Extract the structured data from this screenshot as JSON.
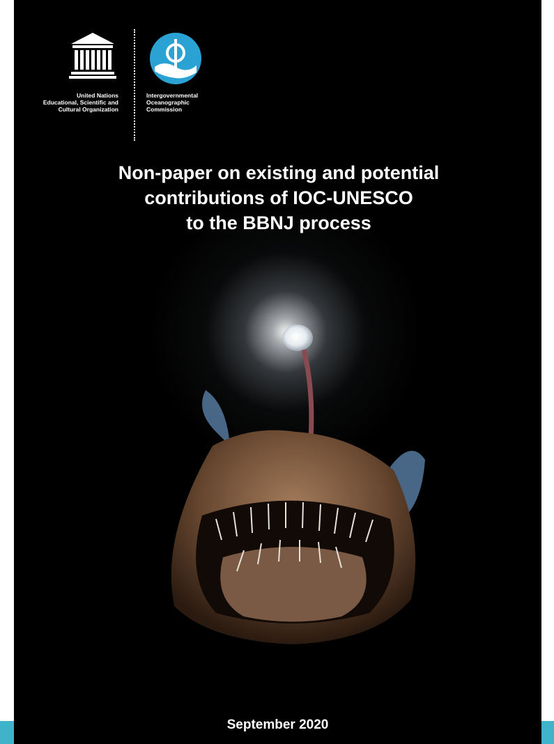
{
  "cover": {
    "background": "#000000",
    "accent_color": "#3fb3c9",
    "unesco": {
      "logo_icon": "unesco-temple-icon",
      "caption": "United Nations\nEducational, Scientific and\nCultural Organization"
    },
    "ioc": {
      "logo_icon": "ioc-wave-icon",
      "logo_color": "#2aa3d4",
      "caption": "Intergovernmental\nOceanographic\nCommission"
    },
    "title_lines": [
      "Non-paper on existing and potential",
      "contributions of IOC-UNESCO",
      "to the BBNJ process"
    ],
    "illustration": "anglerfish-icon",
    "date": "September 2020"
  }
}
